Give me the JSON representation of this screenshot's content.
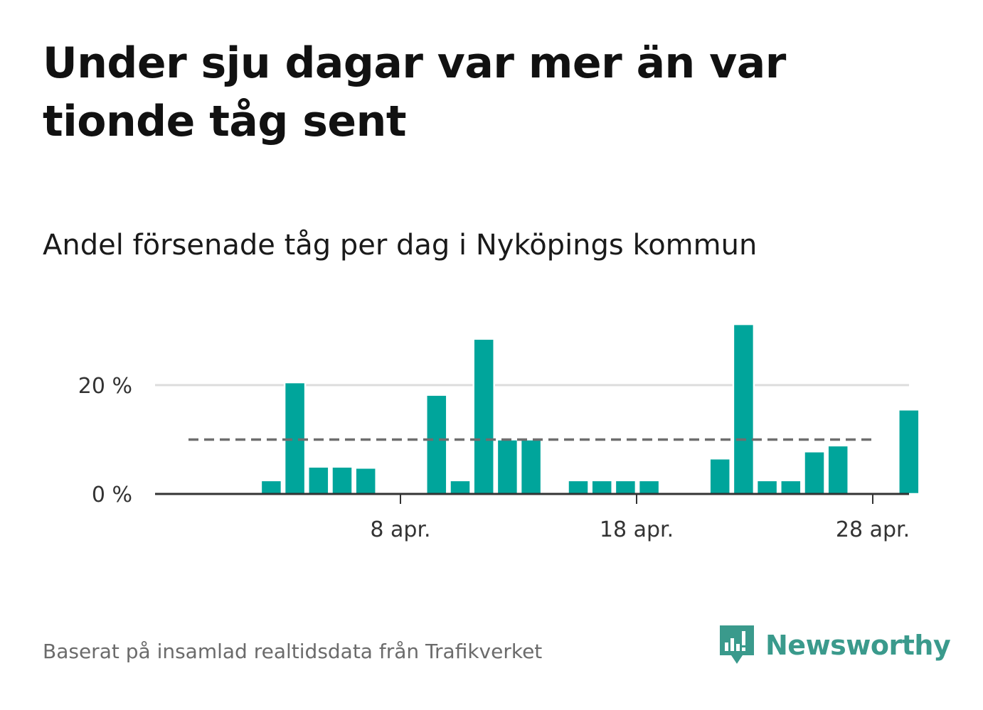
{
  "headline": "Under sju dagar var mer än var tionde tåg sent",
  "chart_data": {
    "type": "bar",
    "title": "Andel försenade tåg per dag i Nyköpings kommun",
    "x": [
      1,
      2,
      3,
      4,
      5,
      6,
      7,
      8,
      9,
      10,
      11,
      12,
      13,
      14,
      15,
      16,
      17,
      18,
      19,
      20,
      21,
      22,
      23,
      24,
      25,
      26,
      27,
      28,
      29,
      30
    ],
    "x_unit": "day of April",
    "values": [
      null,
      null,
      2.5,
      20.5,
      5,
      5,
      4.8,
      null,
      null,
      18.2,
      2.5,
      28.5,
      10,
      10,
      null,
      2.5,
      2.5,
      2.5,
      2.5,
      null,
      null,
      6.5,
      31.2,
      2.5,
      2.5,
      7.8,
      8.9,
      null,
      null,
      15.5
    ],
    "ylim": [
      0,
      32
    ],
    "yticks": [
      0,
      20
    ],
    "ytick_labels": [
      "0 %",
      "20 %"
    ],
    "xticks": [
      8,
      18,
      28
    ],
    "xtick_labels": [
      "8 apr.",
      "18 apr.",
      "28 apr."
    ],
    "reference_line": {
      "value": 10,
      "style": "dashed"
    },
    "xlabel": "",
    "ylabel": "",
    "grid": true,
    "legend": "none",
    "colors": {
      "bar": "#00a59b",
      "reference": "#6e6e6e",
      "grid": "#dddddd",
      "axis": "#333333"
    }
  },
  "source": "Baserat på insamlad realtidsdata från Trafikverket",
  "logo": {
    "text": "Newsworthy",
    "icon": "newsworthy-logo-icon",
    "color": "#3a9a8c"
  }
}
